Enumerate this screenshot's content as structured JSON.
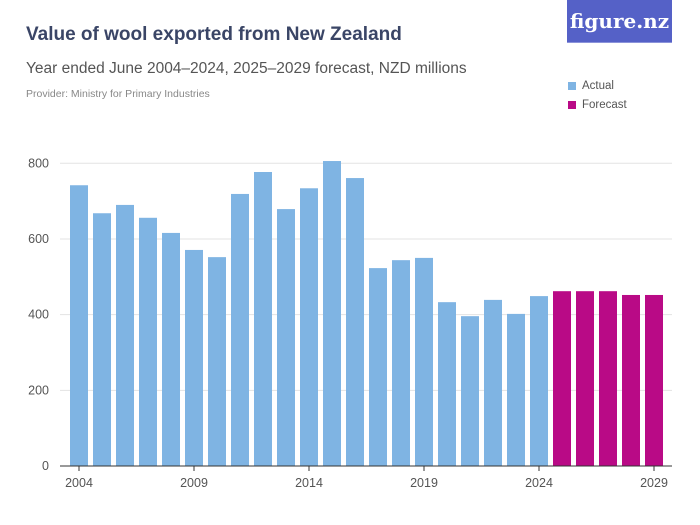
{
  "logo": "figure.nz",
  "chart_data": {
    "type": "bar",
    "title": "Value of wool exported from New Zealand",
    "subtitle": "Year ended June 2004–2024, 2025–2029 forecast, NZD millions",
    "provider": "Provider: Ministry for Primary Industries",
    "categories": [
      "2004",
      "2005",
      "2006",
      "2007",
      "2008",
      "2009",
      "2010",
      "2011",
      "2012",
      "2013",
      "2014",
      "2015",
      "2016",
      "2017",
      "2018",
      "2019",
      "2020",
      "2021",
      "2022",
      "2023",
      "2024",
      "2025",
      "2026",
      "2027",
      "2028",
      "2029"
    ],
    "values": [
      742,
      668,
      690,
      656,
      616,
      571,
      552,
      719,
      777,
      679,
      734,
      806,
      761,
      523,
      544,
      550,
      433,
      396,
      439,
      402,
      449,
      462,
      462,
      462,
      452,
      452
    ],
    "series_type": [
      "Actual",
      "Actual",
      "Actual",
      "Actual",
      "Actual",
      "Actual",
      "Actual",
      "Actual",
      "Actual",
      "Actual",
      "Actual",
      "Actual",
      "Actual",
      "Actual",
      "Actual",
      "Actual",
      "Actual",
      "Actual",
      "Actual",
      "Actual",
      "Actual",
      "Forecast",
      "Forecast",
      "Forecast",
      "Forecast",
      "Forecast"
    ],
    "legend": [
      {
        "name": "Actual",
        "color": "#7fb4e3"
      },
      {
        "name": "Forecast",
        "color": "#b90a86"
      }
    ],
    "legend_position": "top-right",
    "ylim": [
      0,
      800
    ],
    "yticks": [
      0,
      200,
      400,
      600,
      800
    ],
    "xtick_labels": [
      "2004",
      "2009",
      "2014",
      "2019",
      "2024",
      "2029"
    ],
    "grid": true
  }
}
